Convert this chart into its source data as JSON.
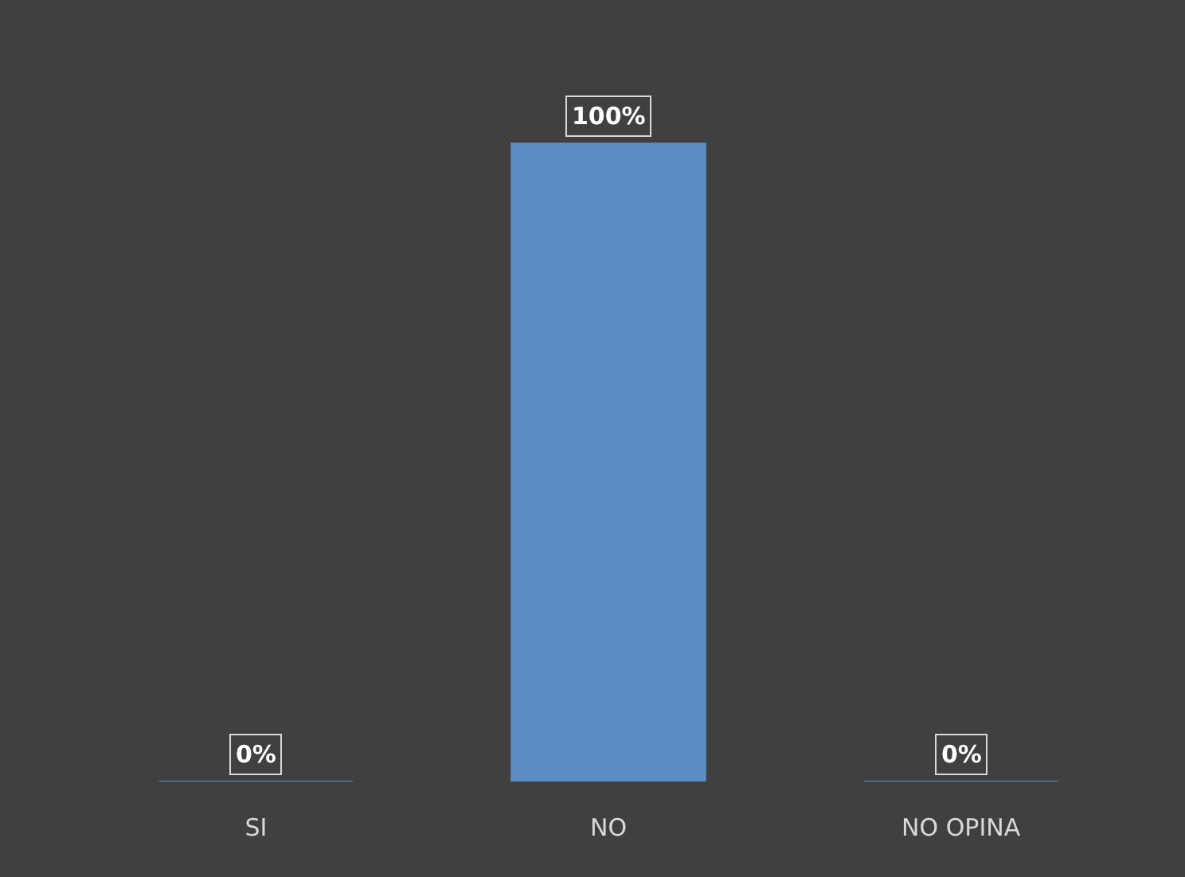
{
  "chart_data": {
    "type": "bar",
    "categories": [
      "SI",
      "NO",
      "NO OPINA"
    ],
    "values": [
      0,
      100,
      0
    ],
    "color": "#5b8ec6",
    "value_labels": [
      "0%",
      "100%",
      "0%"
    ],
    "legend": false
  }
}
